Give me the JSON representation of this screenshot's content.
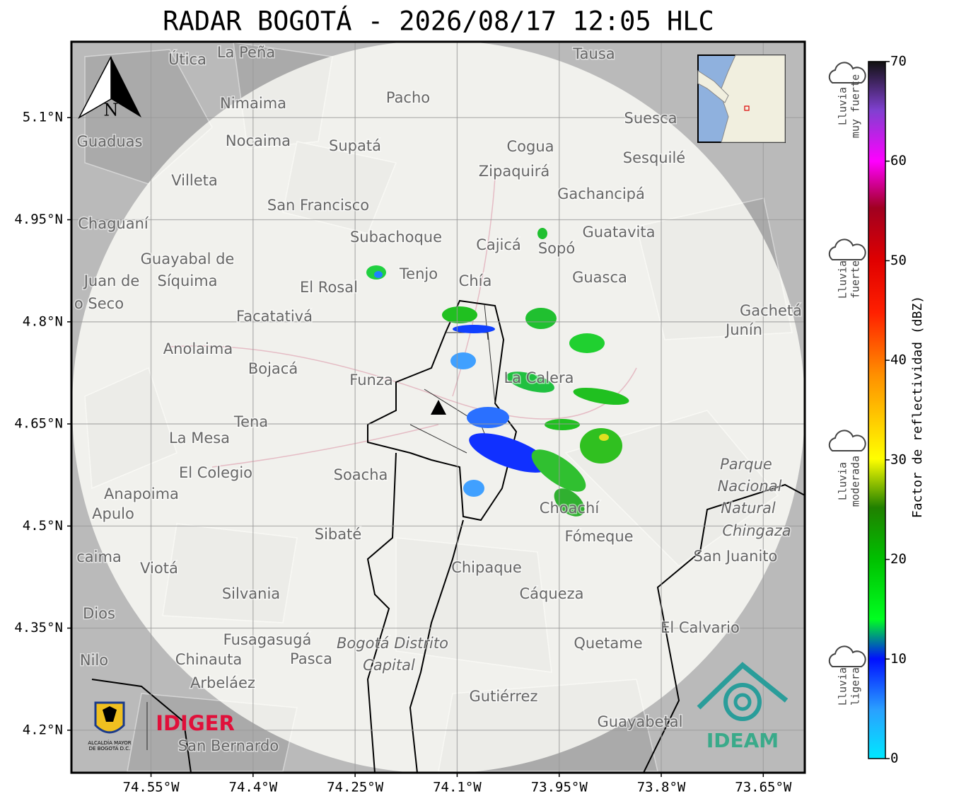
{
  "map": {
    "title": "RADAR BOGOTÁ - 2026/08/17 12:05 HLC",
    "xlim": [
      -74.667,
      -73.589
    ],
    "ylim": [
      4.1375,
      5.2115
    ],
    "xticks": [
      {
        "value": -74.55,
        "label": "74.55°W"
      },
      {
        "value": -74.4,
        "label": "74.4°W"
      },
      {
        "value": -74.25,
        "label": "74.25°W"
      },
      {
        "value": -74.1,
        "label": "74.1°W"
      },
      {
        "value": -73.95,
        "label": "73.95°W"
      },
      {
        "value": -73.8,
        "label": "73.8°W"
      },
      {
        "value": -73.65,
        "label": "73.65°W"
      }
    ],
    "yticks": [
      {
        "value": 5.1,
        "label": "5.1°N"
      },
      {
        "value": 4.95,
        "label": "4.95°N"
      },
      {
        "value": 4.8,
        "label": "4.8°N"
      },
      {
        "value": 4.65,
        "label": "4.65°N"
      },
      {
        "value": 4.5,
        "label": "4.5°N"
      },
      {
        "value": 4.35,
        "label": "4.35°N"
      },
      {
        "value": 4.2,
        "label": "4.2°N"
      }
    ],
    "grid": true,
    "north": "N",
    "places": [
      "La Peña",
      "Útica",
      "Tausa",
      "Pacho",
      "Nimaima",
      "Suesca",
      "Guaduas",
      "Nocaima",
      "Supatá",
      "Cogua",
      "Sesquilé",
      "Zipaquirá",
      "Villeta",
      "Gachancipá",
      "San Francisco",
      "Chaguaní",
      "Guatavita",
      "Subachoque",
      "Cajicá",
      "Sopó",
      "Guayabal de",
      "Síquima",
      "Tenjo",
      "Chía",
      "Guasca",
      "Juan de",
      "o Seco",
      "El Rosal",
      "Gachetá",
      "Junín",
      "Facatativá",
      "Anolaima",
      "Bojacá",
      "Funza",
      "La Calera",
      "Tena",
      "La Mesa",
      "Parque",
      "Nacional",
      "Natural",
      "Chingaza",
      "El Colegio",
      "Soacha",
      "Anapoima",
      "Apulo",
      "Choachí",
      "Sibaté",
      "Fómeque",
      "San Juanito",
      "caima",
      "Viotá",
      "Chipaque",
      "Silvania",
      "Cáqueza",
      "Dios",
      "El Calvario",
      "Fusagasugá",
      "Bogotá Distrito",
      "Capital",
      "Quetame",
      "Nilo",
      "Chinauta",
      "Pasca",
      "Arbeláez",
      "Gutiérrez",
      "Guayabetal",
      "San Bernardo"
    ],
    "logos": {
      "alcaldia": [
        "ALCALDÍA MAYOR",
        "DE BOGOTÁ D.C."
      ],
      "idiger": "IDIGER",
      "ideam": "IDEAM"
    }
  },
  "colorbar": {
    "label": "Factor de reflectividad (dBZ)",
    "lim": [
      0,
      70
    ],
    "ticks": [
      0,
      10,
      20,
      30,
      40,
      50,
      60,
      70
    ],
    "rain": [
      [
        "Lluvia",
        "muy fuerte"
      ],
      [
        "Lluvia",
        "fuerte"
      ],
      [
        "Lluvia",
        "moderada"
      ],
      [
        "Lluvia",
        "ligera"
      ]
    ]
  }
}
